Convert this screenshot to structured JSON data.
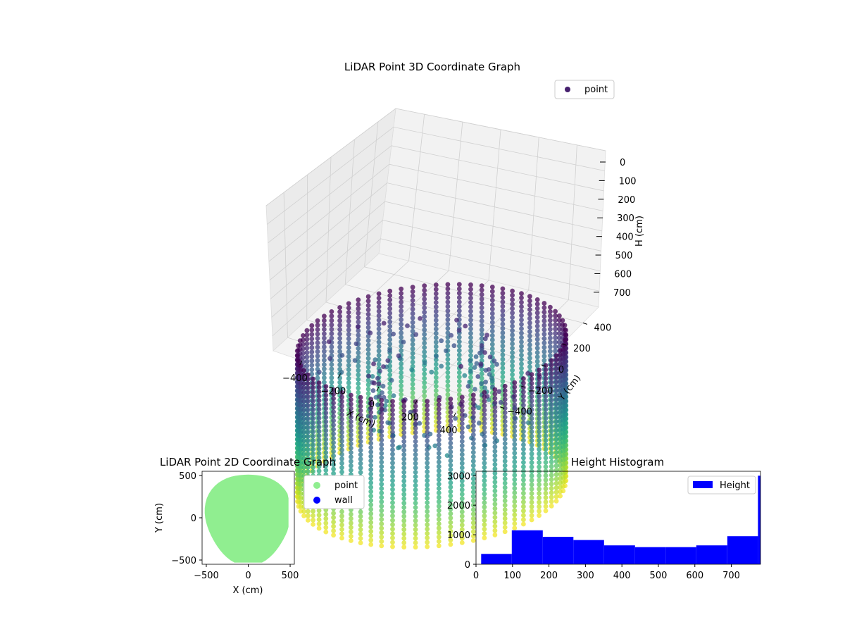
{
  "chart_data": [
    {
      "type": "scatter3d",
      "title": "LiDAR Point 3D Coordinate Graph",
      "xlabel": "X (cm)",
      "ylabel": "Y (cm)",
      "zlabel": "H (cm)",
      "xticks": [
        "−400",
        "−200",
        "0",
        "200",
        "400"
      ],
      "yticks": [
        "400",
        "200",
        "0",
        "−200",
        "−400"
      ],
      "zticks": [
        "0",
        "100",
        "200",
        "300",
        "400",
        "500",
        "600",
        "700"
      ],
      "xlim": [
        -550,
        550
      ],
      "ylim": [
        -550,
        550
      ],
      "zlim": [
        0,
        780
      ],
      "zinverted": true,
      "colormap": "viridis",
      "legend": {
        "label": "point",
        "color": "#46206e",
        "position": "top-right"
      },
      "grid": true
    },
    {
      "type": "scatter",
      "title": "LiDAR Point 2D Coordinate Graph",
      "xlabel": "X (cm)",
      "ylabel": "Y (cm)",
      "xticks": [
        "−500",
        "0",
        "500"
      ],
      "yticks": [
        "500",
        "0",
        "−500"
      ],
      "xlim": [
        -550,
        550
      ],
      "ylim": [
        -550,
        550
      ],
      "series": [
        {
          "name": "point",
          "color": "#90ee90"
        },
        {
          "name": "wall",
          "color": "#0000ff"
        }
      ],
      "legend_position": "outside-right"
    },
    {
      "type": "bar",
      "title": "Height Histogram",
      "xlabel": "",
      "ylabel": "",
      "xticks": [
        "0",
        "100",
        "200",
        "300",
        "400",
        "500",
        "600",
        "700"
      ],
      "yticks": [
        "0",
        "1000",
        "2000",
        "3000"
      ],
      "xlim": [
        0,
        780
      ],
      "ylim": [
        0,
        3150
      ],
      "color": "#0000ff",
      "legend": {
        "label": "Height",
        "position": "top-right"
      },
      "bins": [
        {
          "x0": 14,
          "x1": 98,
          "count": 350
        },
        {
          "x0": 98,
          "x1": 183,
          "count": 1150
        },
        {
          "x0": 183,
          "x1": 267,
          "count": 930
        },
        {
          "x0": 267,
          "x1": 351,
          "count": 820
        },
        {
          "x0": 351,
          "x1": 436,
          "count": 640
        },
        {
          "x0": 436,
          "x1": 520,
          "count": 580
        },
        {
          "x0": 520,
          "x1": 604,
          "count": 580
        },
        {
          "x0": 604,
          "x1": 689,
          "count": 640
        },
        {
          "x0": 689,
          "x1": 773,
          "count": 950
        },
        {
          "x0": 773,
          "x1": 780,
          "count": 3000
        }
      ]
    }
  ]
}
